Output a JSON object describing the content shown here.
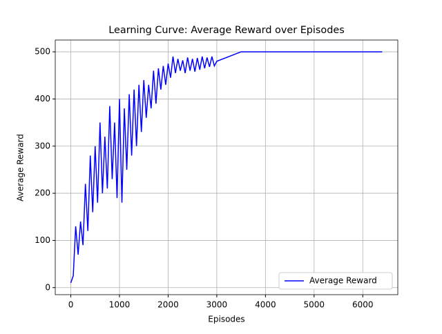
{
  "chart_data": {
    "type": "line",
    "title": "Learning Curve: Average Reward over Episodes",
    "x_label": "Episodes",
    "y_label": "Average Reward",
    "x": [
      0,
      50,
      100,
      150,
      200,
      250,
      300,
      350,
      400,
      450,
      500,
      550,
      600,
      650,
      700,
      750,
      800,
      850,
      900,
      950,
      1000,
      1050,
      1100,
      1150,
      1200,
      1250,
      1300,
      1350,
      1400,
      1450,
      1500,
      1550,
      1600,
      1650,
      1700,
      1750,
      1800,
      1850,
      1900,
      1950,
      2000,
      2050,
      2100,
      2150,
      2200,
      2250,
      2300,
      2350,
      2400,
      2450,
      2500,
      2550,
      2600,
      2650,
      2700,
      2750,
      2800,
      2850,
      2900,
      2950,
      3000,
      3500,
      6400
    ],
    "series": [
      {
        "name": "Average Reward",
        "color": "#0000ff",
        "values": [
          10,
          25,
          130,
          70,
          140,
          90,
          220,
          120,
          280,
          160,
          300,
          180,
          350,
          200,
          320,
          210,
          385,
          230,
          350,
          190,
          400,
          180,
          380,
          250,
          410,
          280,
          420,
          300,
          430,
          330,
          440,
          360,
          430,
          380,
          460,
          390,
          465,
          420,
          470,
          430,
          475,
          445,
          490,
          455,
          485,
          460,
          482,
          455,
          488,
          460,
          485,
          458,
          487,
          462,
          490,
          465,
          488,
          468,
          490,
          470,
          480,
          500,
          500
        ]
      }
    ],
    "xlim": [
      -320,
      6720
    ],
    "ylim": [
      -15,
      525
    ],
    "xticks": [
      0,
      1000,
      2000,
      3000,
      4000,
      5000,
      6000
    ],
    "yticks": [
      0,
      100,
      200,
      300,
      400,
      500
    ],
    "grid": true,
    "legend": "lower right"
  }
}
